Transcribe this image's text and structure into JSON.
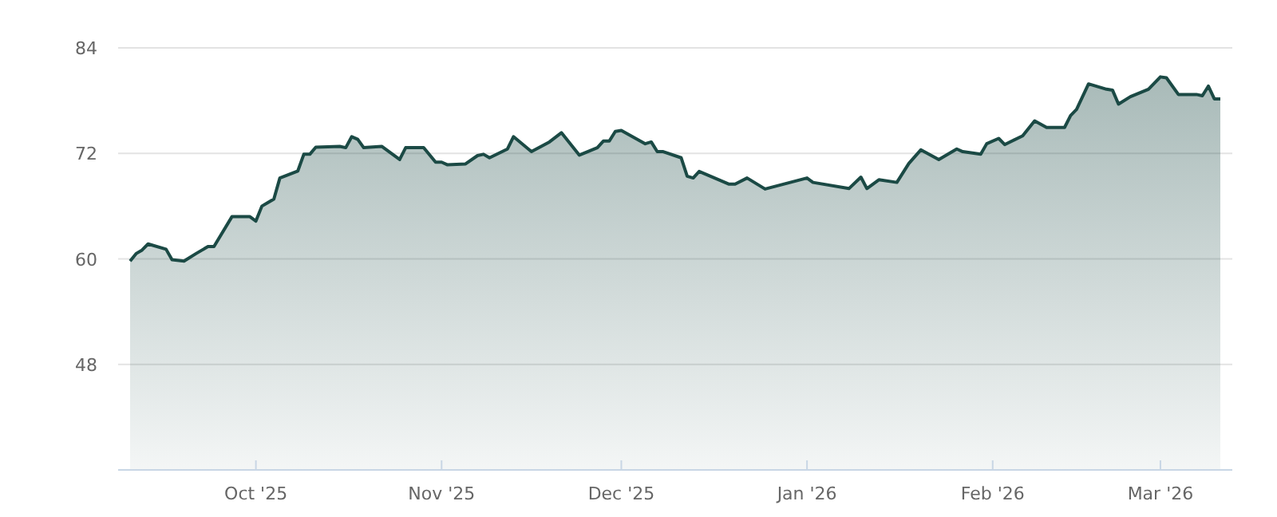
{
  "chart_data": {
    "type": "area",
    "grid": "y",
    "xlim": [
      "2025-09-08",
      "2026-03-13"
    ],
    "ylim": [
      36,
      84
    ],
    "yticks": [
      48,
      60,
      72,
      84
    ],
    "xticks": [
      {
        "value": "2025-10-01",
        "label": "Oct '25"
      },
      {
        "value": "2025-11-01",
        "label": "Nov '25"
      },
      {
        "value": "2025-12-01",
        "label": "Dec '25"
      },
      {
        "value": "2026-01-01",
        "label": "Jan '26"
      },
      {
        "value": "2026-02-01",
        "label": "Feb '26"
      },
      {
        "value": "2026-03-01",
        "label": "Mar '26"
      }
    ],
    "series": [
      {
        "color": "#1b4a45",
        "x": [
          "2025-09-10",
          "2025-09-11",
          "2025-09-12",
          "2025-09-13",
          "2025-09-16",
          "2025-09-17",
          "2025-09-19",
          "2025-09-21",
          "2025-09-23",
          "2025-09-24",
          "2025-09-27",
          "2025-09-30",
          "2025-10-01",
          "2025-10-02",
          "2025-10-04",
          "2025-10-05",
          "2025-10-08",
          "2025-10-09",
          "2025-10-10",
          "2025-10-11",
          "2025-10-15",
          "2025-10-16",
          "2025-10-17",
          "2025-10-18",
          "2025-10-19",
          "2025-10-22",
          "2025-10-24",
          "2025-10-25",
          "2025-10-26",
          "2025-10-29",
          "2025-10-31",
          "2025-11-01",
          "2025-11-02",
          "2025-11-05",
          "2025-11-07",
          "2025-11-08",
          "2025-11-09",
          "2025-11-12",
          "2025-11-13",
          "2025-11-16",
          "2025-11-19",
          "2025-11-21",
          "2025-11-24",
          "2025-11-27",
          "2025-11-28",
          "2025-11-29",
          "2025-11-30",
          "2025-12-01",
          "2025-12-05",
          "2025-12-06",
          "2025-12-07",
          "2025-12-08",
          "2025-12-11",
          "2025-12-12",
          "2025-12-13",
          "2025-12-14",
          "2025-12-19",
          "2025-12-20",
          "2025-12-22",
          "2025-12-25",
          "2026-01-01",
          "2026-01-02",
          "2026-01-08",
          "2026-01-10",
          "2026-01-11",
          "2026-01-13",
          "2026-01-16",
          "2026-01-18",
          "2026-01-20",
          "2026-01-23",
          "2026-01-26",
          "2026-01-27",
          "2026-01-30",
          "2026-01-31",
          "2026-02-02",
          "2026-02-03",
          "2026-02-06",
          "2026-02-08",
          "2026-02-10",
          "2026-02-13",
          "2026-02-14",
          "2026-02-15",
          "2026-02-17",
          "2026-02-20",
          "2026-02-21",
          "2026-02-22",
          "2026-02-24",
          "2026-02-27",
          "2026-03-01",
          "2026-03-02",
          "2026-03-04",
          "2026-03-07",
          "2026-03-08",
          "2026-03-09",
          "2026-03-10",
          "2026-03-11"
        ],
        "values": [
          59.75,
          60.6,
          61.0,
          61.7,
          61.1,
          59.9,
          59.75,
          60.6,
          61.4,
          61.4,
          64.8,
          64.8,
          64.3,
          66.0,
          66.8,
          69.2,
          70.0,
          71.9,
          71.9,
          72.7,
          72.8,
          72.65,
          73.9,
          73.6,
          72.65,
          72.8,
          71.8,
          71.3,
          72.65,
          72.65,
          71.0,
          71.0,
          70.7,
          70.8,
          71.75,
          71.9,
          71.5,
          72.5,
          73.9,
          72.2,
          73.3,
          74.35,
          71.8,
          72.65,
          73.4,
          73.4,
          74.5,
          74.6,
          73.1,
          73.3,
          72.2,
          72.2,
          71.5,
          69.4,
          69.2,
          69.95,
          68.5,
          68.5,
          69.2,
          67.95,
          69.2,
          68.7,
          68.0,
          69.3,
          68.0,
          69.0,
          68.7,
          70.85,
          72.4,
          71.3,
          72.5,
          72.2,
          71.9,
          73.1,
          73.7,
          73.0,
          74.0,
          75.7,
          74.95,
          74.95,
          76.3,
          77.0,
          79.9,
          79.3,
          79.2,
          77.6,
          78.45,
          79.3,
          80.7,
          80.6,
          78.7,
          78.7,
          78.55,
          79.65,
          78.2,
          78.2
        ]
      }
    ]
  }
}
